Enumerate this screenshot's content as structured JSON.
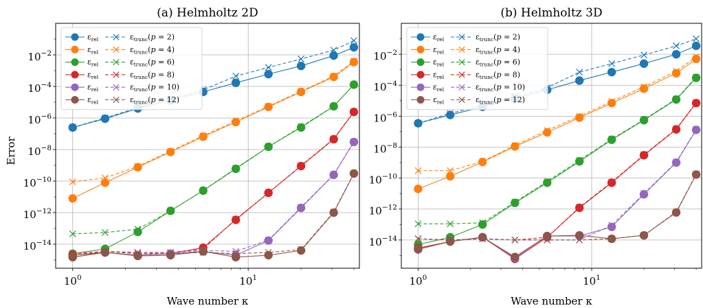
{
  "figure": {
    "ylabel": "Error"
  },
  "chart_data": [
    {
      "type": "line",
      "title": "(a) Helmholtz 2D",
      "xlabel": "Wave number κ",
      "xscale": "log",
      "yscale": "log",
      "xlim": [
        0.8,
        43
      ],
      "ylim": [
        3e-16,
        1.0
      ],
      "grid": true,
      "legend_placement": "top-left",
      "xticks": [
        {
          "value": 1,
          "base": "10",
          "exp": "0"
        },
        {
          "value": 10,
          "base": "10",
          "exp": "1"
        }
      ],
      "yticks": [
        {
          "value": 0.01,
          "base": "10",
          "exp": "−2"
        },
        {
          "value": 0.0001,
          "base": "10",
          "exp": "−4"
        },
        {
          "value": 1e-06,
          "base": "10",
          "exp": "−6"
        },
        {
          "value": 1e-08,
          "base": "10",
          "exp": "−8"
        },
        {
          "value": 1e-10,
          "base": "10",
          "exp": "−10"
        },
        {
          "value": 1e-12,
          "base": "10",
          "exp": "−12"
        },
        {
          "value": 1e-14,
          "base": "10",
          "exp": "−14"
        }
      ],
      "x": [
        1,
        1.53,
        2.35,
        3.61,
        5.54,
        8.5,
        13.04,
        20,
        30.7,
        40
      ],
      "series": [
        {
          "p": "2",
          "color": "#1f77b4",
          "rel": [
            2.5e-07,
            9e-07,
            4e-06,
            1.3e-05,
            4.5e-05,
            0.00017,
            0.0006,
            0.002,
            0.009,
            0.03
          ],
          "trunc": [
            2.5e-07,
            1e-06,
            4.5e-06,
            1.6e-05,
            6e-05,
            0.00045,
            0.0016,
            0.0055,
            0.02,
            0.08
          ]
        },
        {
          "p": "4",
          "color": "#ff7f0e",
          "rel": [
            8e-12,
            8e-11,
            7.5e-10,
            7e-09,
            6.5e-08,
            5.5e-07,
            5e-06,
            4.5e-05,
            0.0004,
            0.0035
          ],
          "trunc": [
            9e-11,
            1.6e-10,
            8.5e-10,
            8e-09,
            7.5e-08,
            6.5e-07,
            5.5e-06,
            5e-05,
            0.00045,
            0.004
          ]
        },
        {
          "p": "6",
          "color": "#2ca02c",
          "rel": [
            2.5e-15,
            5e-15,
            6e-14,
            1.3e-12,
            2.5e-11,
            6e-10,
            1.5e-08,
            2.5e-07,
            5.5e-06,
            0.00013
          ],
          "trunc": [
            4.5e-14,
            5.5e-14,
            9e-14,
            1.3e-12,
            2.5e-11,
            6.5e-10,
            1.5e-08,
            2.8e-07,
            5.5e-06,
            0.00013
          ]
        },
        {
          "p": "8",
          "color": "#d62728",
          "rel": [
            2e-15,
            3e-15,
            2e-15,
            2.5e-15,
            6e-15,
            3.5e-13,
            1.8e-11,
            9e-10,
            4.5e-08,
            2.4e-06
          ],
          "trunc": [
            2.5e-15,
            3.5e-15,
            3e-15,
            3e-15,
            5e-15,
            3.8e-13,
            1.8e-11,
            9.5e-10,
            4.8e-08,
            2.5e-06
          ]
        },
        {
          "p": "10",
          "color": "#9467bd",
          "rel": [
            1.5e-15,
            3e-15,
            2e-15,
            2.5e-15,
            3.5e-15,
            2e-15,
            1.7e-14,
            2e-12,
            2.5e-10,
            3e-08
          ],
          "trunc": [
            2e-15,
            3.5e-15,
            2.5e-15,
            3e-15,
            4e-15,
            3.5e-15,
            1.8e-14,
            2.2e-12,
            2.6e-10,
            3.2e-08
          ]
        },
        {
          "p": "12",
          "color": "#8c564b",
          "rel": [
            1.5e-15,
            3e-15,
            1.8e-15,
            2e-15,
            3.5e-15,
            1.5e-15,
            2e-15,
            4e-15,
            1e-12,
            3e-10
          ],
          "trunc": [
            2e-15,
            3.5e-15,
            2.5e-15,
            2.5e-15,
            3e-15,
            2.5e-15,
            3e-15,
            4.5e-15,
            1.1e-12,
            3.1e-10
          ]
        }
      ]
    },
    {
      "type": "line",
      "title": "(b) Helmholtz 3D",
      "xlabel": "Wave number κ",
      "xscale": "log",
      "yscale": "log",
      "xlim": [
        0.8,
        43
      ],
      "ylim": [
        1.5e-16,
        1.0
      ],
      "grid": true,
      "legend_placement": "top-left",
      "xticks": [
        {
          "value": 1,
          "base": "10",
          "exp": "0"
        },
        {
          "value": 10,
          "base": "10",
          "exp": "1"
        }
      ],
      "yticks": [
        {
          "value": 0.01,
          "base": "10",
          "exp": "−2"
        },
        {
          "value": 0.0001,
          "base": "10",
          "exp": "−4"
        },
        {
          "value": 1e-06,
          "base": "10",
          "exp": "−6"
        },
        {
          "value": 1e-08,
          "base": "10",
          "exp": "−8"
        },
        {
          "value": 1e-10,
          "base": "10",
          "exp": "−10"
        },
        {
          "value": 1e-12,
          "base": "10",
          "exp": "−12"
        },
        {
          "value": 1e-14,
          "base": "10",
          "exp": "−14"
        }
      ],
      "x": [
        1,
        1.53,
        2.35,
        3.61,
        5.54,
        8.5,
        13.04,
        20,
        30.7,
        40
      ],
      "series": [
        {
          "p": "2",
          "color": "#1f77b4",
          "rel": [
            3.5e-07,
            1.2e-06,
            4e-06,
            1.4e-05,
            5e-05,
            0.0002,
            0.0007,
            0.0025,
            0.01,
            0.035
          ],
          "trunc": [
            3.5e-07,
            1.5e-06,
            5e-06,
            1.8e-05,
            7e-05,
            0.0007,
            0.0025,
            0.009,
            0.035,
            0.1
          ]
        },
        {
          "p": "4",
          "color": "#ff7f0e",
          "rel": [
            2e-11,
            1.3e-10,
            1.1e-09,
            1.1e-08,
            9e-08,
            8e-07,
            7e-06,
            6e-05,
            0.0006,
            0.005
          ],
          "trunc": [
            3e-10,
            3e-10,
            1.2e-09,
            1.3e-08,
            1.2e-07,
            1e-06,
            9e-06,
            8e-05,
            0.0008,
            0.007
          ]
        },
        {
          "p": "6",
          "color": "#2ca02c",
          "rel": [
            5e-15,
            1.5e-14,
            1e-13,
            2.5e-12,
            5e-11,
            1.2e-09,
            3e-08,
            5.5e-07,
            1.2e-05,
            0.0003
          ],
          "trunc": [
            1.1e-13,
            1.1e-13,
            1.3e-13,
            2.8e-12,
            6e-11,
            1.4e-09,
            3.3e-08,
            6e-07,
            1.3e-05,
            0.00033
          ]
        },
        {
          "p": "8",
          "color": "#d62728",
          "rel": [
            3e-15,
            8e-15,
            1.5e-14,
            6e-16,
            1.5e-14,
            1.2e-12,
            5e-11,
            3e-09,
            1.4e-07,
            7e-06
          ],
          "trunc": [
            1.2e-14,
            1e-14,
            1.2e-14,
            1e-14,
            1.5e-14,
            1.3e-12,
            5.5e-11,
            3.2e-09,
            1.5e-07,
            7.5e-06
          ]
        },
        {
          "p": "10",
          "color": "#9467bd",
          "rel": [
            2.5e-15,
            8e-15,
            1.5e-14,
            7e-16,
            1.8e-14,
            1.8e-14,
            7e-14,
            9e-12,
            1e-09,
            1.3e-07
          ],
          "trunc": [
            1.2e-14,
            1e-14,
            1.2e-14,
            1e-14,
            1e-14,
            1e-14,
            9e-14,
            1e-11,
            1.1e-09,
            1.4e-07
          ]
        },
        {
          "p": "12",
          "color": "#8c564b",
          "rel": [
            2.5e-15,
            8e-15,
            1.5e-14,
            8e-16,
            1.8e-14,
            2e-14,
            1.2e-14,
            2e-14,
            6e-13,
            1.7e-10
          ],
          "trunc": [
            1.2e-14,
            1e-14,
            1.2e-14,
            1e-14,
            1e-14,
            1e-14,
            1.2e-14,
            2e-14,
            6.5e-13,
            1.8e-10
          ]
        }
      ]
    }
  ]
}
